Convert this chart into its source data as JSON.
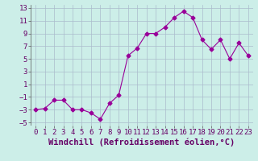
{
  "x": [
    0,
    1,
    2,
    3,
    4,
    5,
    6,
    7,
    8,
    9,
    10,
    11,
    12,
    13,
    14,
    15,
    16,
    17,
    18,
    19,
    20,
    21,
    22,
    23
  ],
  "y": [
    -3,
    -2.8,
    -1.5,
    -1.5,
    -3,
    -3,
    -3.5,
    -4.5,
    -2,
    -0.7,
    5.5,
    6.7,
    9,
    9,
    10,
    11.5,
    12.5,
    11.5,
    8,
    6.5,
    8,
    5,
    7.5,
    5.5
  ],
  "line_color": "#990099",
  "marker": "D",
  "marker_size": 2.5,
  "background_color": "#cceee8",
  "grid_color": "#aabbcc",
  "xlabel": "Windchill (Refroidissement éolien,°C)",
  "xlabel_fontsize": 7.5,
  "tick_fontsize": 6.5,
  "xlim": [
    -0.5,
    23.5
  ],
  "ylim": [
    -5.5,
    13.5
  ],
  "yticks": [
    -5,
    -3,
    -1,
    1,
    3,
    5,
    7,
    9,
    11,
    13
  ],
  "xticks": [
    0,
    1,
    2,
    3,
    4,
    5,
    6,
    7,
    8,
    9,
    10,
    11,
    12,
    13,
    14,
    15,
    16,
    17,
    18,
    19,
    20,
    21,
    22,
    23
  ]
}
